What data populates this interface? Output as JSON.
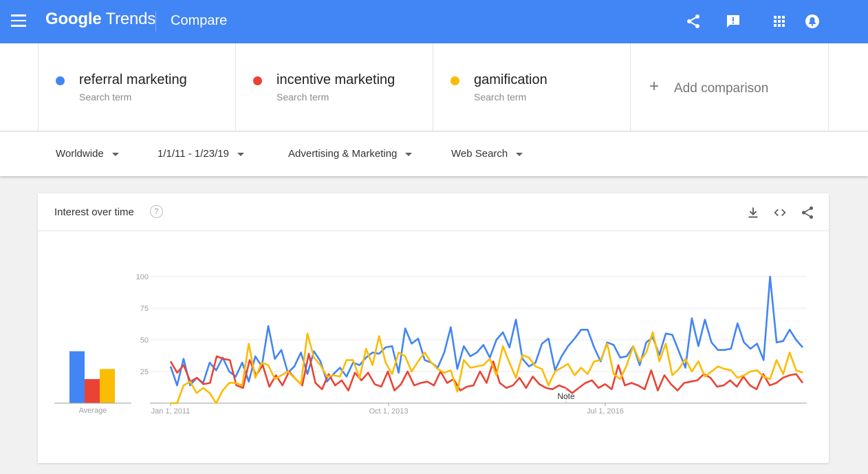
{
  "header": {
    "logo_brand": "Google",
    "logo_product": "Trends",
    "page_title": "Compare"
  },
  "terms": [
    {
      "name": "referral marketing",
      "sub": "Search term",
      "color": "#4285f4"
    },
    {
      "name": "incentive marketing",
      "sub": "Search term",
      "color": "#ea4335"
    },
    {
      "name": "gamification",
      "sub": "Search term",
      "color": "#fbbc04"
    }
  ],
  "add_comparison": {
    "label": "Add comparison",
    "plus": "+"
  },
  "filters": [
    {
      "label": "Worldwide"
    },
    {
      "label": "1/1/11 - 1/23/19"
    },
    {
      "label": "Advertising & Marketing"
    },
    {
      "label": "Web Search"
    }
  ],
  "card": {
    "title": "Interest over time",
    "help": "?"
  },
  "chart_data": {
    "type": "line",
    "yticks": [
      "25",
      "50",
      "75",
      "100"
    ],
    "xticks": [
      "Jan 1, 2011",
      "Oct 1, 2013",
      "Jul 1, 2016"
    ],
    "ylim": [
      0,
      100
    ],
    "note_label": "Note",
    "average_label": "Average",
    "averages": [
      41,
      19,
      27
    ],
    "grid": true,
    "series": [
      {
        "name": "referral marketing",
        "color": "#4285f4",
        "values": [
          29,
          14,
          35,
          14,
          20,
          16,
          32,
          26,
          36,
          25,
          21,
          32,
          17,
          37,
          29,
          61,
          35,
          42,
          24,
          29,
          40,
          23,
          41,
          33,
          17,
          23,
          28,
          21,
          32,
          30,
          36,
          40,
          39,
          44,
          45,
          24,
          59,
          47,
          51,
          34,
          32,
          28,
          40,
          60,
          27,
          45,
          37,
          40,
          46,
          36,
          50,
          56,
          44,
          66,
          35,
          29,
          32,
          47,
          51,
          26,
          37,
          45,
          51,
          58,
          58,
          44,
          33,
          48,
          46,
          36,
          37,
          45,
          30,
          48,
          52,
          38,
          55,
          54,
          41,
          28,
          67,
          45,
          66,
          48,
          42,
          42,
          43,
          63,
          48,
          43,
          47,
          34,
          100,
          48,
          49,
          58,
          50,
          44
        ]
      },
      {
        "name": "incentive marketing",
        "color": "#ea4335",
        "values": [
          33,
          24,
          30,
          17,
          20,
          15,
          16,
          37,
          35,
          34,
          14,
          12,
          34,
          22,
          30,
          13,
          22,
          14,
          25,
          19,
          14,
          39,
          16,
          11,
          23,
          14,
          18,
          10,
          24,
          18,
          24,
          15,
          13,
          25,
          10,
          15,
          25,
          14,
          16,
          17,
          14,
          25,
          16,
          19,
          10,
          13,
          14,
          25,
          16,
          33,
          16,
          12,
          14,
          20,
          12,
          21,
          15,
          12,
          11,
          14,
          12,
          8,
          12,
          16,
          18,
          12,
          15,
          11,
          30,
          14,
          16,
          14,
          11,
          26,
          10,
          22,
          15,
          10,
          16,
          17,
          18,
          23,
          20,
          13,
          14,
          18,
          13,
          21,
          14,
          11,
          23,
          14,
          16,
          20,
          22,
          23,
          16
        ]
      },
      {
        "name": "gamification",
        "color": "#fbbc04",
        "values": [
          0,
          0,
          14,
          17,
          8,
          12,
          8,
          0,
          10,
          16,
          16,
          14,
          47,
          20,
          32,
          30,
          19,
          22,
          25,
          20,
          15,
          55,
          36,
          30,
          21,
          22,
          21,
          34,
          34,
          20,
          43,
          30,
          53,
          32,
          23,
          40,
          37,
          25,
          33,
          40,
          32,
          27,
          24,
          26,
          9,
          34,
          28,
          29,
          30,
          35,
          22,
          45,
          32,
          20,
          38,
          36,
          29,
          27,
          14,
          25,
          28,
          31,
          22,
          28,
          23,
          33,
          34,
          47,
          23,
          19,
          30,
          45,
          33,
          40,
          56,
          33,
          47,
          22,
          27,
          35,
          25,
          33,
          21,
          25,
          29,
          27,
          26,
          20,
          22,
          25,
          26,
          21,
          19,
          34,
          23,
          40,
          26,
          24
        ]
      }
    ]
  }
}
